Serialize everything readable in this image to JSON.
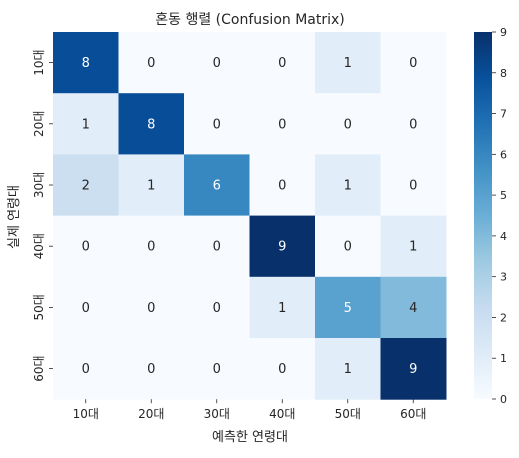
{
  "chart_data": {
    "type": "heatmap",
    "title": "혼동 행렬 (Confusion Matrix)",
    "xlabel": "예측한 연령대",
    "ylabel": "실제 연령대",
    "x_categories": [
      "10대",
      "20대",
      "30대",
      "40대",
      "50대",
      "60대"
    ],
    "y_categories": [
      "10대",
      "20대",
      "30대",
      "40대",
      "50대",
      "60대"
    ],
    "values": [
      [
        8,
        0,
        0,
        0,
        1,
        0
      ],
      [
        1,
        8,
        0,
        0,
        0,
        0
      ],
      [
        2,
        1,
        6,
        0,
        1,
        0
      ],
      [
        0,
        0,
        0,
        9,
        0,
        1
      ],
      [
        0,
        0,
        0,
        1,
        5,
        4
      ],
      [
        0,
        0,
        0,
        0,
        1,
        9
      ]
    ],
    "colormap": "Blues",
    "vmin": 0,
    "vmax": 9,
    "colorbar_ticks": [
      0,
      1,
      2,
      3,
      4,
      5,
      6,
      7,
      8,
      9
    ],
    "annotations": true,
    "grid": false
  }
}
